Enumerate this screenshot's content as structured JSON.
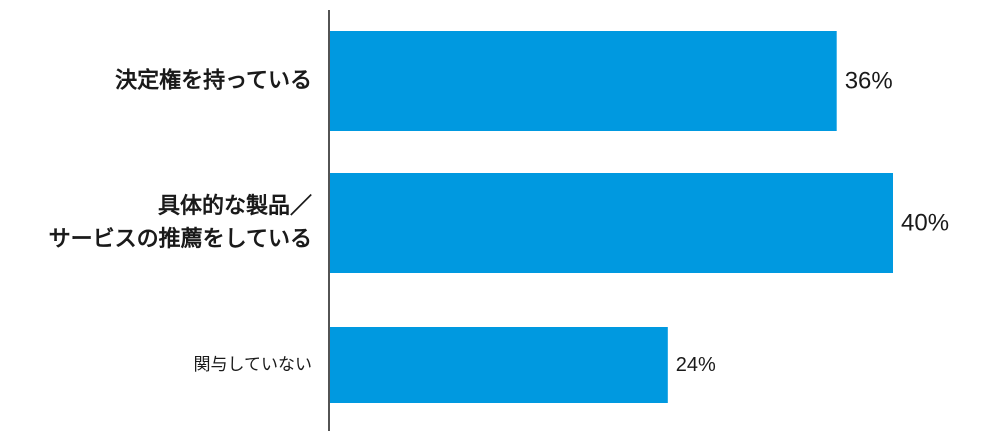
{
  "chart_data": {
    "type": "bar",
    "orientation": "horizontal",
    "categories": [
      [
        "決定権を持っている"
      ],
      [
        "具体的な製品／",
        "サービスの推薦をしている"
      ],
      [
        "関与していない"
      ]
    ],
    "values": [
      36,
      40,
      24
    ],
    "value_labels": [
      "36%",
      "40%",
      "24%"
    ],
    "bar_color": "#0099e0",
    "xlim": [
      0,
      40
    ],
    "grid": false,
    "legend": "none"
  }
}
